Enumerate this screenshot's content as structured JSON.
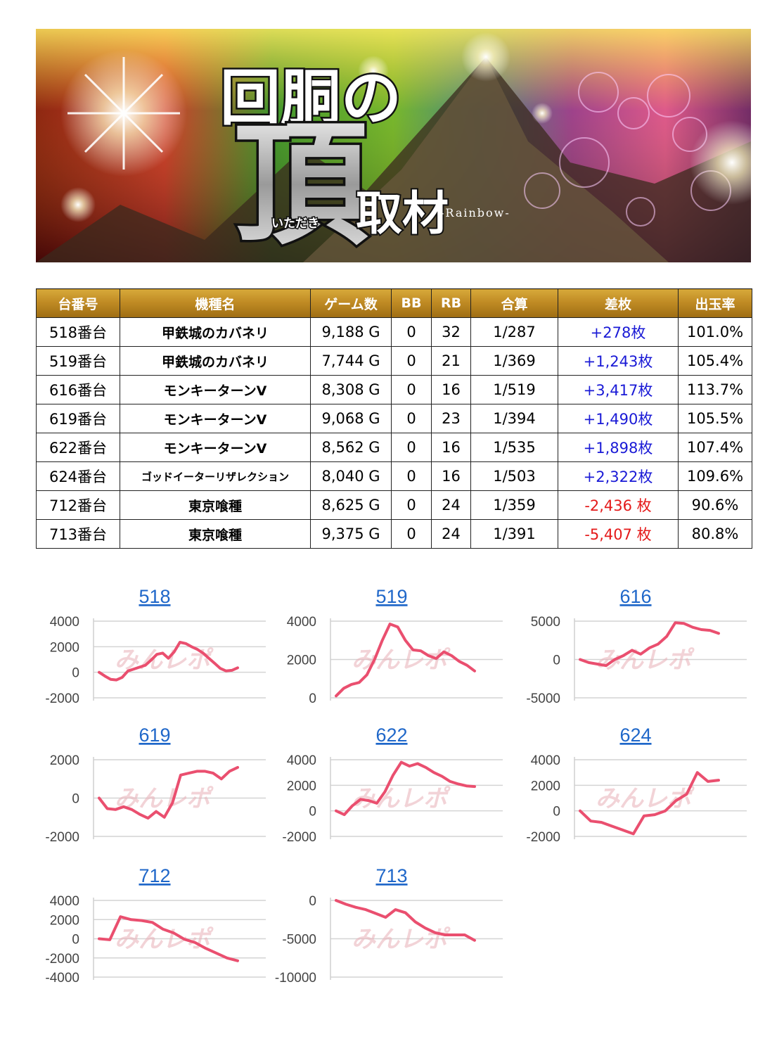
{
  "banner": {
    "title_top": "回胴の",
    "title_big": "頂",
    "title_ruby": "いただき",
    "title_sub": "取材",
    "title_tag": "-Rainbow-"
  },
  "table": {
    "headers": [
      "台番号",
      "機種名",
      "ゲーム数",
      "BB",
      "RB",
      "合算",
      "差枚",
      "出玉率"
    ],
    "rows": [
      {
        "unit": "518番台",
        "machine": "甲鉄城のカバネリ",
        "games": "9,188 G",
        "bb": "0",
        "rb": "32",
        "combined": "1/287",
        "diff": "+278枚",
        "rate": "101.0%"
      },
      {
        "unit": "519番台",
        "machine": "甲鉄城のカバネリ",
        "games": "7,744 G",
        "bb": "0",
        "rb": "21",
        "combined": "1/369",
        "diff": "+1,243枚",
        "rate": "105.4%"
      },
      {
        "unit": "616番台",
        "machine": "モンキーターンV",
        "games": "8,308 G",
        "bb": "0",
        "rb": "16",
        "combined": "1/519",
        "diff": "+3,417枚",
        "rate": "113.7%"
      },
      {
        "unit": "619番台",
        "machine": "モンキーターンV",
        "games": "9,068 G",
        "bb": "0",
        "rb": "23",
        "combined": "1/394",
        "diff": "+1,490枚",
        "rate": "105.5%"
      },
      {
        "unit": "622番台",
        "machine": "モンキーターンV",
        "games": "8,562 G",
        "bb": "0",
        "rb": "16",
        "combined": "1/535",
        "diff": "+1,898枚",
        "rate": "107.4%"
      },
      {
        "unit": "624番台",
        "machine": "ゴッドイーターリザレクション",
        "games": "8,040 G",
        "bb": "0",
        "rb": "16",
        "combined": "1/503",
        "diff": "+2,322枚",
        "rate": "109.6%"
      },
      {
        "unit": "712番台",
        "machine": "東京喰種",
        "games": "8,625 G",
        "bb": "0",
        "rb": "24",
        "combined": "1/359",
        "diff": "-2,436 枚",
        "rate": "90.6%"
      },
      {
        "unit": "713番台",
        "machine": "東京喰種",
        "games": "9,375 G",
        "bb": "0",
        "rb": "24",
        "combined": "1/391",
        "diff": "-5,407 枚",
        "rate": "80.8%"
      }
    ]
  },
  "colors": {
    "header_gold": "#c08b24",
    "plus": "#1a1ad6",
    "minus": "#e41a1a",
    "line": "#ea4f6f",
    "chart_title": "#1f67c9"
  },
  "watermark": "みんレポ",
  "chart_data": [
    {
      "type": "line",
      "title": "518",
      "ticks": [
        -2000,
        0,
        2000,
        4000
      ],
      "ylim": [
        -2000,
        4000
      ],
      "values": [
        0,
        -300,
        -550,
        -600,
        -400,
        100,
        250,
        400,
        550,
        950,
        1400,
        1500,
        1100,
        1600,
        2350,
        2250,
        2000,
        1800,
        1500,
        1100,
        700,
        300,
        100,
        150,
        350
      ]
    },
    {
      "type": "line",
      "title": "519",
      "ticks": [
        0,
        2000,
        4000
      ],
      "ylim": [
        0,
        4000
      ],
      "values": [
        100,
        500,
        700,
        800,
        1200,
        2000,
        3000,
        3850,
        3700,
        3000,
        2500,
        2450,
        2200,
        2050,
        2400,
        2200,
        1900,
        1700,
        1400
      ]
    },
    {
      "type": "line",
      "title": "616",
      "ticks": [
        -5000,
        0,
        5000
      ],
      "ylim": [
        -5000,
        5000
      ],
      "values": [
        0,
        -400,
        -600,
        -800,
        0,
        500,
        1200,
        700,
        1500,
        2000,
        3000,
        4800,
        4700,
        4200,
        3900,
        3800,
        3400
      ]
    },
    {
      "type": "line",
      "title": "619",
      "ticks": [
        -2000,
        0,
        2000
      ],
      "ylim": [
        -2000,
        2000
      ],
      "values": [
        0,
        -550,
        -600,
        -450,
        -600,
        -850,
        -1050,
        -700,
        -1000,
        -250,
        1200,
        1300,
        1400,
        1400,
        1300,
        1000,
        1400,
        1600
      ]
    },
    {
      "type": "line",
      "title": "622",
      "ticks": [
        -2000,
        0,
        2000,
        4000
      ],
      "ylim": [
        -2000,
        4000
      ],
      "values": [
        0,
        -300,
        400,
        900,
        800,
        600,
        1500,
        2800,
        3800,
        3500,
        3700,
        3400,
        3000,
        2700,
        2300,
        2100,
        1950,
        1900
      ]
    },
    {
      "type": "line",
      "title": "624",
      "ticks": [
        -2000,
        0,
        2000,
        4000
      ],
      "ylim": [
        -2000,
        4000
      ],
      "values": [
        0,
        -800,
        -900,
        -1200,
        -1500,
        -1800,
        -400,
        -300,
        0,
        800,
        1300,
        3000,
        2300,
        2400
      ]
    },
    {
      "type": "line",
      "title": "712",
      "ticks": [
        -4000,
        -2000,
        0,
        2000,
        4000
      ],
      "ylim": [
        -4000,
        4000
      ],
      "values": [
        0,
        -100,
        2300,
        2000,
        1900,
        1700,
        1000,
        600,
        -50,
        -400,
        -1000,
        -1500,
        -2000,
        -2300
      ]
    },
    {
      "type": "line",
      "title": "713",
      "ticks": [
        -10000,
        -5000,
        0
      ],
      "ylim": [
        -10000,
        0
      ],
      "values": [
        0,
        -500,
        -900,
        -1200,
        -1700,
        -2200,
        -1200,
        -1600,
        -2800,
        -3600,
        -4200,
        -4500,
        -4500,
        -4500,
        -5200
      ]
    }
  ]
}
